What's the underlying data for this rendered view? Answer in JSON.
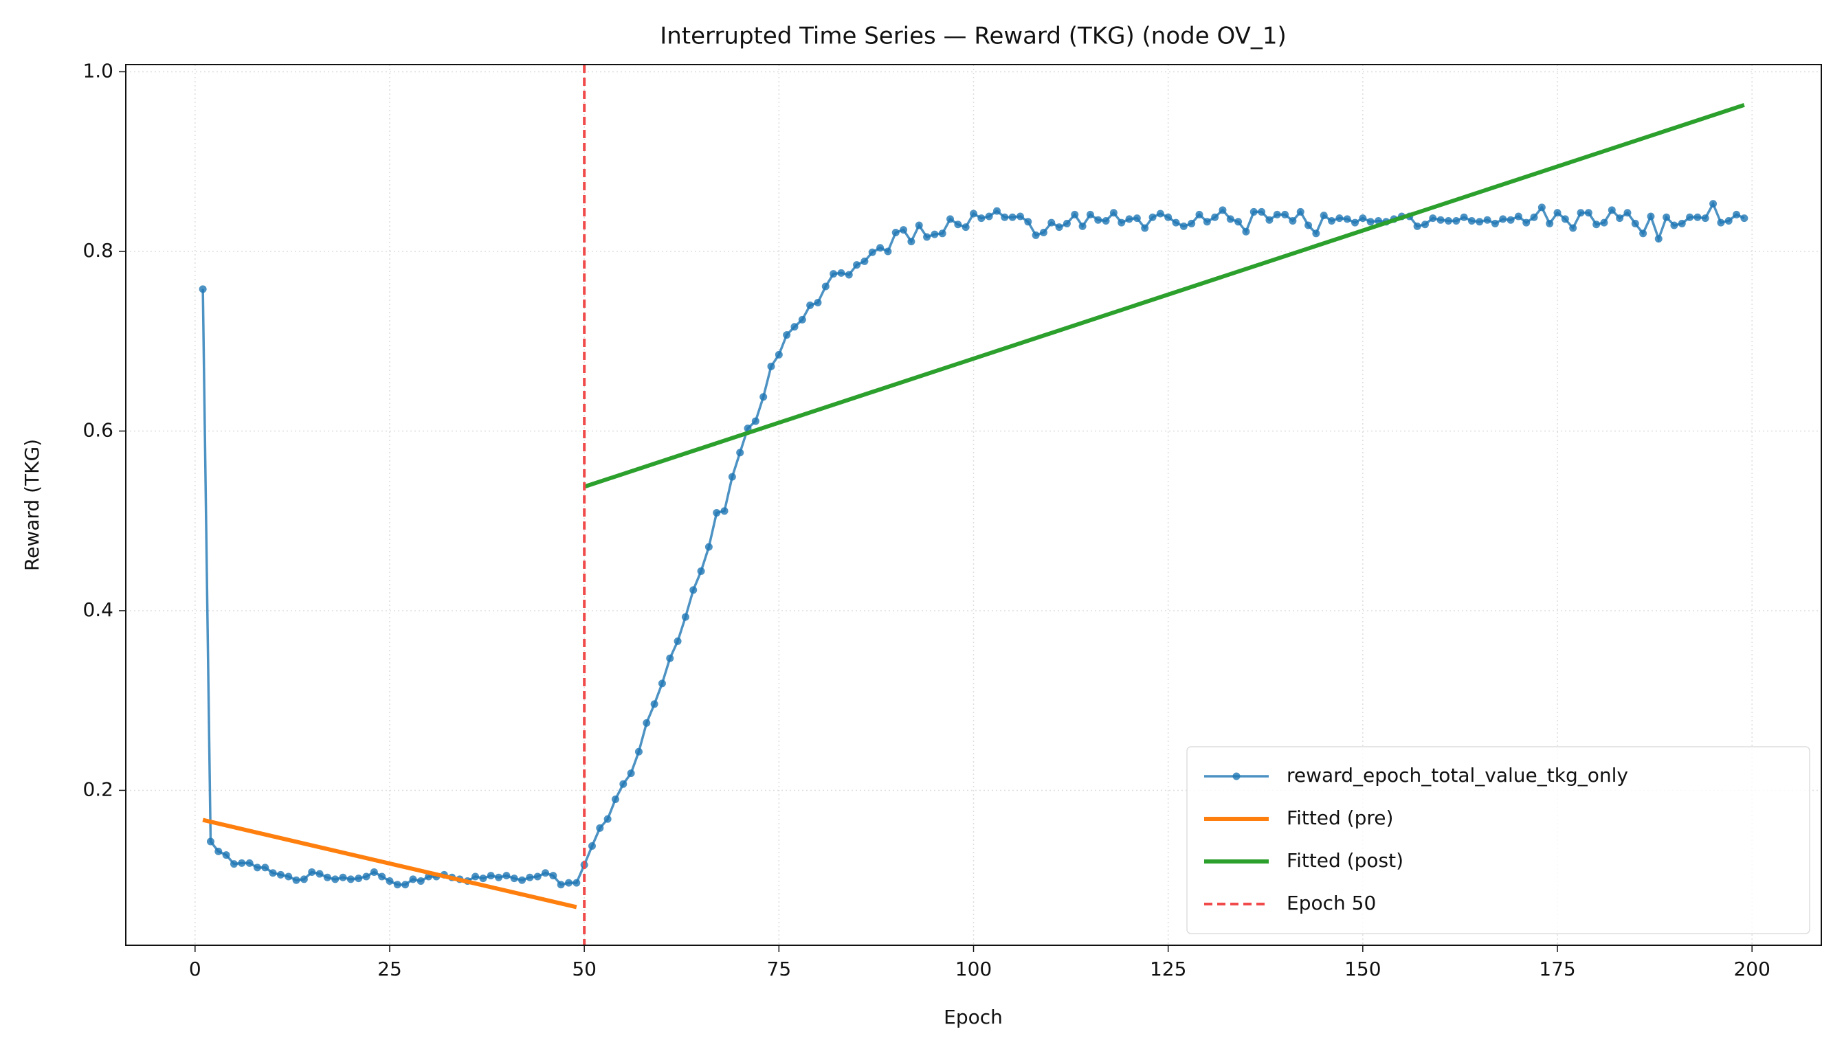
{
  "chart_data": {
    "type": "line",
    "title": "Interrupted Time Series — Reward (TKG) (node OV_1)",
    "x_label": "Epoch",
    "y_label": "Reward (TKG)",
    "xlim": [
      -8.9,
      208.9
    ],
    "ylim": [
      0.0275,
      1.008
    ],
    "xticks": [
      0,
      25,
      50,
      75,
      100,
      125,
      150,
      175,
      200
    ],
    "yticks": [
      0.2,
      0.4,
      0.6,
      0.8,
      {
        "value": 1,
        "label": "1.0"
      }
    ],
    "grid": true,
    "legend_loc": "lower right",
    "series": [
      {
        "name": "reward_epoch_total_value_tkg_only",
        "color": "#1f77b4",
        "markers": true,
        "x": [
          1,
          2,
          3,
          4,
          5,
          6,
          7,
          8,
          9,
          10,
          11,
          12,
          13,
          14,
          15,
          16,
          17,
          18,
          19,
          20,
          21,
          22,
          23,
          24,
          25,
          26,
          27,
          28,
          29,
          30,
          31,
          32,
          33,
          34,
          35,
          36,
          37,
          38,
          39,
          40,
          41,
          42,
          43,
          44,
          45,
          46,
          47,
          48,
          49,
          50,
          51,
          52,
          53,
          54,
          55,
          56,
          57,
          58,
          59,
          60,
          61,
          62,
          63,
          64,
          65,
          66,
          67,
          68,
          69,
          70,
          71,
          72,
          73,
          74,
          75,
          76,
          77,
          78,
          79,
          80,
          81,
          82,
          83,
          84,
          85,
          86,
          87,
          88,
          89,
          90,
          91,
          92,
          93,
          94,
          95,
          96,
          97,
          98,
          99,
          100,
          101,
          102,
          103,
          104,
          105,
          106,
          107,
          108,
          109,
          110,
          111,
          112,
          113,
          114,
          115,
          116,
          117,
          118,
          119,
          120,
          121,
          122,
          123,
          124,
          125,
          126,
          127,
          128,
          129,
          130,
          131,
          132,
          133,
          134,
          135,
          136,
          137,
          138,
          139,
          140,
          141,
          142,
          143,
          144,
          145,
          146,
          147,
          148,
          149,
          150,
          151,
          152,
          153,
          154,
          155,
          156,
          157,
          158,
          159,
          160,
          161,
          162,
          163,
          164,
          165,
          166,
          167,
          168,
          169,
          170,
          171,
          172,
          173,
          174,
          175,
          176,
          177,
          178,
          179,
          180,
          181,
          182,
          183,
          184,
          185,
          186,
          187,
          188,
          189,
          190,
          191,
          192,
          193,
          194,
          195,
          196,
          197,
          198,
          199
        ],
        "values": [
          0.758,
          0.143,
          0.132,
          0.128,
          0.118,
          0.119,
          0.119,
          0.114,
          0.114,
          0.108,
          0.106,
          0.104,
          0.1,
          0.101,
          0.109,
          0.107,
          0.103,
          0.101,
          0.103,
          0.101,
          0.102,
          0.104,
          0.109,
          0.104,
          0.099,
          0.095,
          0.095,
          0.101,
          0.099,
          0.104,
          0.104,
          0.106,
          0.103,
          0.101,
          0.099,
          0.104,
          0.102,
          0.105,
          0.103,
          0.105,
          0.102,
          0.1,
          0.103,
          0.104,
          0.108,
          0.105,
          0.095,
          0.097,
          0.097,
          0.117,
          0.138,
          0.158,
          0.168,
          0.19,
          0.207,
          0.219,
          0.243,
          0.275,
          0.296,
          0.319,
          0.347,
          0.366,
          0.393,
          0.423,
          0.444,
          0.471,
          0.509,
          0.511,
          0.549,
          0.576,
          0.603,
          0.611,
          0.638,
          0.672,
          0.685,
          0.707,
          0.716,
          0.724,
          0.74,
          0.743,
          0.761,
          0.775,
          0.776,
          0.774,
          0.785,
          0.789,
          0.799,
          0.804,
          0.8,
          0.821,
          0.824,
          0.811,
          0.829,
          0.816,
          0.819,
          0.82,
          0.836,
          0.83,
          0.827,
          0.842,
          0.837,
          0.839,
          0.845,
          0.838,
          0.838,
          0.839,
          0.833,
          0.818,
          0.821,
          0.832,
          0.827,
          0.831,
          0.841,
          0.828,
          0.841,
          0.835,
          0.834,
          0.843,
          0.832,
          0.836,
          0.837,
          0.826,
          0.838,
          0.842,
          0.838,
          0.832,
          0.828,
          0.831,
          0.841,
          0.833,
          0.838,
          0.846,
          0.836,
          0.833,
          0.822,
          0.844,
          0.844,
          0.835,
          0.841,
          0.841,
          0.834,
          0.844,
          0.829,
          0.82,
          0.84,
          0.834,
          0.837,
          0.836,
          0.832,
          0.837,
          0.833,
          0.834,
          0.833,
          0.836,
          0.839,
          0.839,
          0.828,
          0.83,
          0.837,
          0.835,
          0.834,
          0.834,
          0.838,
          0.834,
          0.833,
          0.835,
          0.831,
          0.836,
          0.835,
          0.839,
          0.832,
          0.838,
          0.849,
          0.831,
          0.843,
          0.836,
          0.826,
          0.843,
          0.843,
          0.83,
          0.832,
          0.846,
          0.837,
          0.843,
          0.831,
          0.82,
          0.839,
          0.814,
          0.838,
          0.829,
          0.831,
          0.838,
          0.838,
          0.837,
          0.853,
          0.832,
          0.834,
          0.841,
          0.837
        ]
      },
      {
        "name": "Fitted (pre)",
        "color": "#ff7f0e",
        "x": [
          1,
          49
        ],
        "values": [
          0.167,
          0.07
        ]
      },
      {
        "name": "Fitted (post)",
        "color": "#2ca02c",
        "x": [
          50,
          199
        ],
        "values": [
          0.538,
          0.963
        ]
      }
    ],
    "vline": {
      "name": "Epoch 50",
      "x": 50,
      "color": "#f04a4a"
    }
  }
}
